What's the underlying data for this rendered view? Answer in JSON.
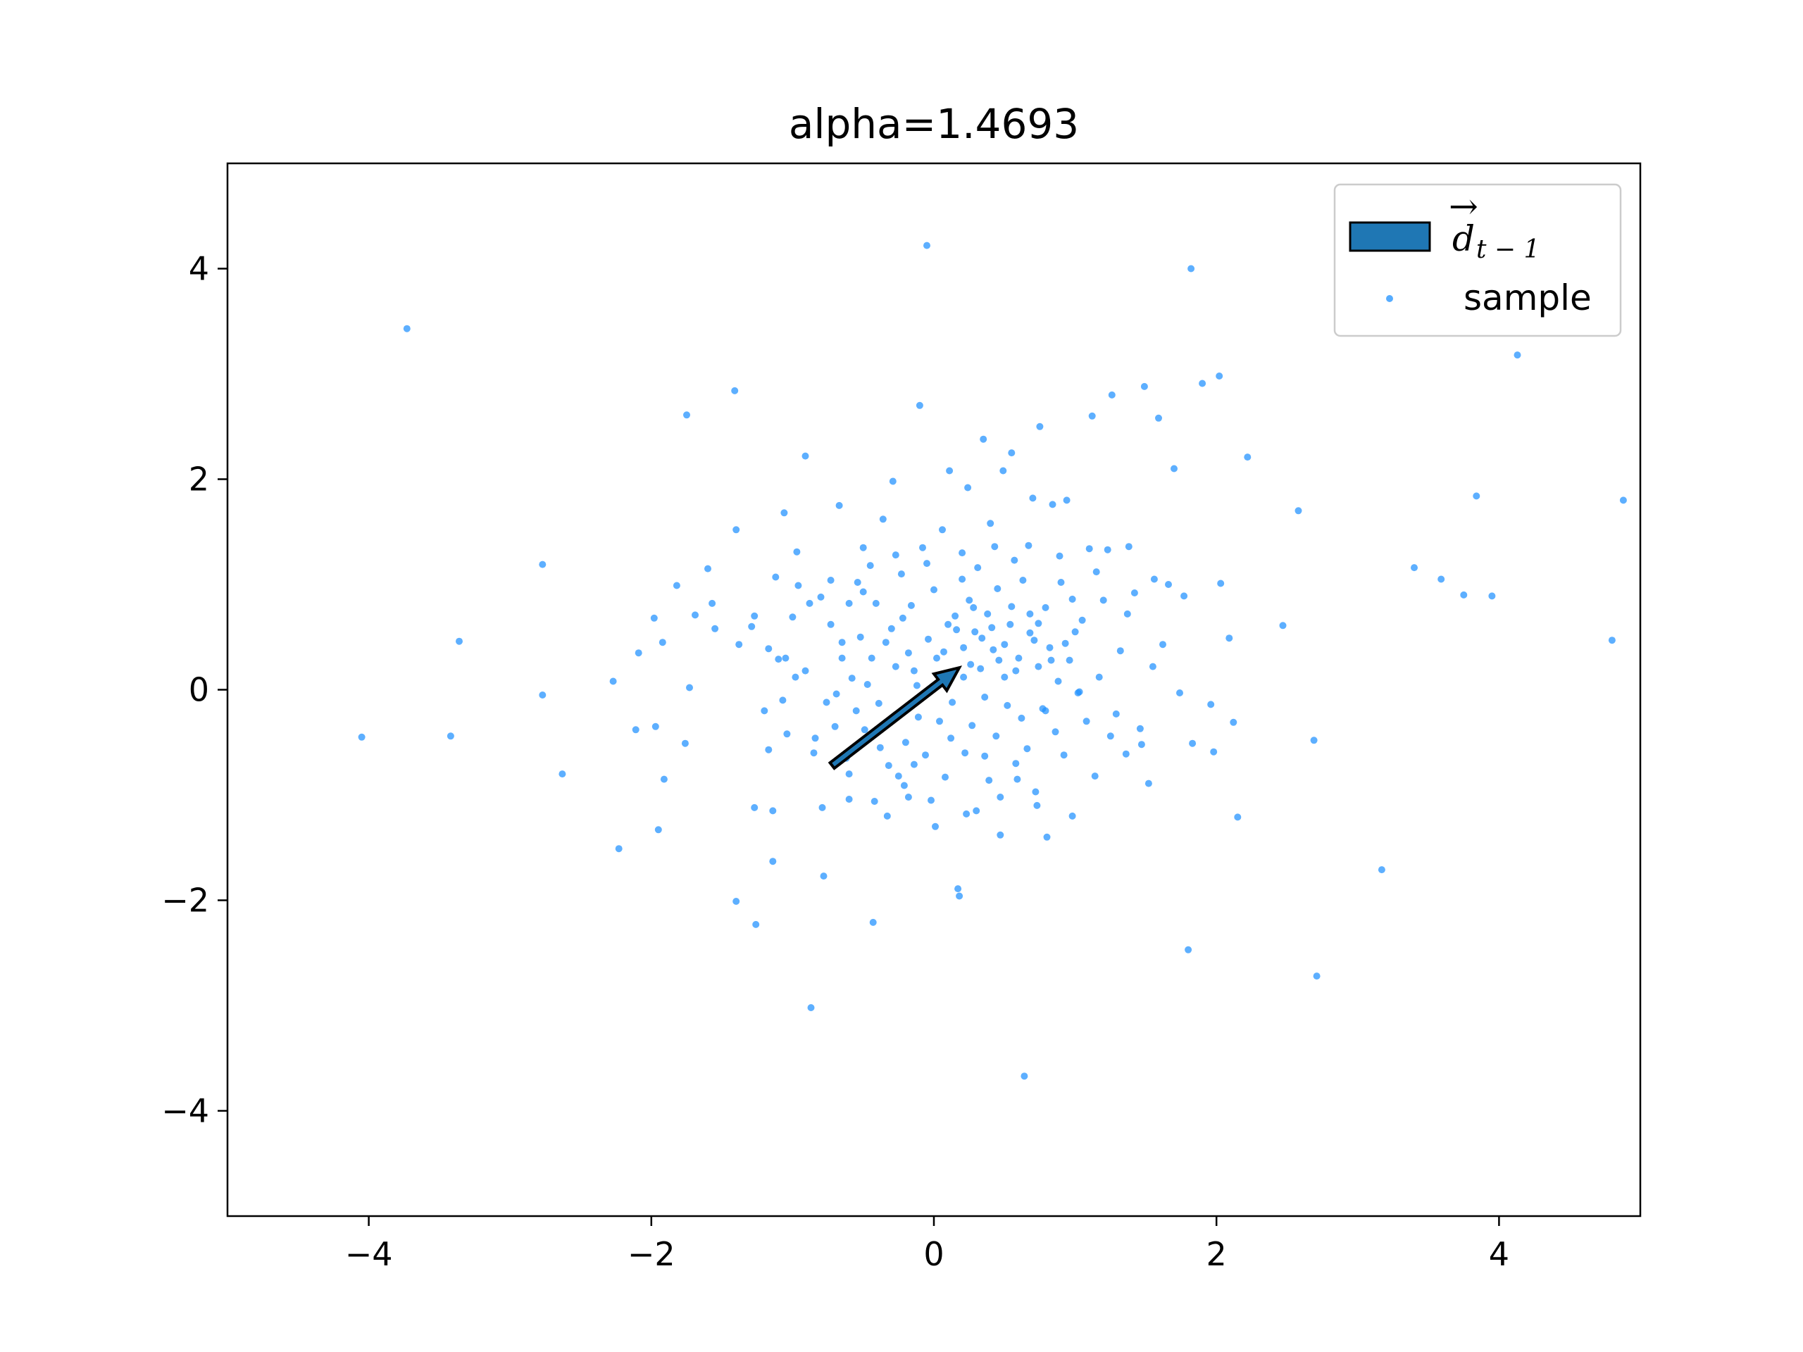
{
  "chart_data": {
    "type": "scatter",
    "title": "alpha=1.4693",
    "xlabel": "",
    "ylabel": "",
    "xlim": [
      -5,
      5
    ],
    "ylim": [
      -5,
      5
    ],
    "xticks": [
      -4,
      -2,
      0,
      2,
      4
    ],
    "yticks": [
      -4,
      -2,
      0,
      2,
      4
    ],
    "xtick_labels": [
      "−4",
      "−2",
      "0",
      "2",
      "4"
    ],
    "ytick_labels": [
      "−4",
      "−2",
      "0",
      "2",
      "4"
    ],
    "grid": false,
    "legend": {
      "placement": "top-right",
      "entries": [
        {
          "label": "d",
          "subscript": "t − 1",
          "arrow_over": "→",
          "kind": "patch",
          "color": "#1f77b4"
        },
        {
          "label": "sample",
          "kind": "point",
          "color": "#1e90ff"
        }
      ]
    },
    "arrow": {
      "x": -0.72,
      "y": -0.72,
      "dx": 0.9,
      "dy": 0.93,
      "face_color": "#1f77b4",
      "edge_color": "#000000"
    },
    "series": [
      {
        "label": "sample",
        "color": "#1e90ff",
        "points": [
          [
            -4.05,
            -0.45
          ],
          [
            -3.73,
            3.43
          ],
          [
            -3.42,
            -0.44
          ],
          [
            -3.36,
            0.46
          ],
          [
            -2.77,
            1.19
          ],
          [
            -2.77,
            -0.05
          ],
          [
            -2.63,
            -0.8
          ],
          [
            -2.27,
            0.08
          ],
          [
            -2.23,
            -1.51
          ],
          [
            -2.09,
            0.35
          ],
          [
            -2.11,
            -0.38
          ],
          [
            -1.97,
            -0.35
          ],
          [
            -1.98,
            0.68
          ],
          [
            -1.95,
            -1.33
          ],
          [
            -1.92,
            0.45
          ],
          [
            -1.91,
            -0.85
          ],
          [
            -1.82,
            0.99
          ],
          [
            -1.75,
            2.61
          ],
          [
            -1.76,
            -0.51
          ],
          [
            -1.73,
            0.02
          ],
          [
            -1.69,
            0.71
          ],
          [
            -1.6,
            1.15
          ],
          [
            -1.57,
            0.82
          ],
          [
            -1.55,
            0.58
          ],
          [
            -1.41,
            2.84
          ],
          [
            -1.4,
            1.52
          ],
          [
            -1.38,
            0.43
          ],
          [
            -1.4,
            -2.01
          ],
          [
            -1.29,
            0.6
          ],
          [
            -1.27,
            -1.12
          ],
          [
            -1.26,
            -2.23
          ],
          [
            -1.2,
            -0.2
          ],
          [
            -1.17,
            -0.57
          ],
          [
            -1.14,
            -1.63
          ],
          [
            -1.14,
            -1.15
          ],
          [
            -1.12,
            1.07
          ],
          [
            -1.1,
            0.29
          ],
          [
            -1.07,
            -0.1
          ],
          [
            -1.06,
            1.68
          ],
          [
            -1.05,
            0.3
          ],
          [
            -1.04,
            -0.42
          ],
          [
            -0.98,
            0.12
          ],
          [
            -0.96,
            0.99
          ],
          [
            -0.91,
            2.22
          ],
          [
            -0.88,
            0.82
          ],
          [
            -0.87,
            -3.02
          ],
          [
            -0.84,
            -0.46
          ],
          [
            -0.8,
            0.88
          ],
          [
            -0.79,
            -1.12
          ],
          [
            -0.78,
            -1.77
          ],
          [
            -0.76,
            -0.12
          ],
          [
            -0.73,
            0.62
          ],
          [
            -0.7,
            -0.35
          ],
          [
            -0.67,
            1.75
          ],
          [
            -0.65,
            0.3
          ],
          [
            -0.62,
            -0.65
          ],
          [
            -0.6,
            0.82
          ],
          [
            -0.58,
            0.11
          ],
          [
            -0.55,
            -0.2
          ],
          [
            -0.52,
            0.5
          ],
          [
            -0.5,
            1.35
          ],
          [
            -0.49,
            -0.38
          ],
          [
            -0.45,
            1.18
          ],
          [
            -0.43,
            -2.21
          ],
          [
            -0.41,
            0.82
          ],
          [
            -0.39,
            -0.13
          ],
          [
            -0.36,
            1.62
          ],
          [
            -0.34,
            0.45
          ],
          [
            -0.33,
            -1.2
          ],
          [
            -0.32,
            -0.72
          ],
          [
            -0.29,
            1.98
          ],
          [
            -0.27,
            0.22
          ],
          [
            -0.25,
            -0.82
          ],
          [
            -0.23,
            1.1
          ],
          [
            -0.22,
            0.68
          ],
          [
            -0.2,
            -0.5
          ],
          [
            -0.18,
            -1.02
          ],
          [
            -0.16,
            0.8
          ],
          [
            -0.14,
            0.18
          ],
          [
            -0.11,
            -0.26
          ],
          [
            -0.1,
            2.7
          ],
          [
            -0.08,
            1.35
          ],
          [
            -0.06,
            -0.62
          ],
          [
            -0.05,
            4.22
          ],
          [
            -0.04,
            0.48
          ],
          [
            -0.02,
            -1.05
          ],
          [
            0.0,
            0.95
          ],
          [
            0.02,
            0.3
          ],
          [
            0.04,
            -0.3
          ],
          [
            0.06,
            1.52
          ],
          [
            0.08,
            -0.83
          ],
          [
            0.1,
            0.62
          ],
          [
            0.11,
            2.08
          ],
          [
            0.13,
            -0.12
          ],
          [
            0.15,
            0.7
          ],
          [
            0.17,
            -1.89
          ],
          [
            0.18,
            -1.96
          ],
          [
            0.2,
            1.3
          ],
          [
            0.21,
            0.4
          ],
          [
            0.22,
            -0.6
          ],
          [
            0.24,
            1.92
          ],
          [
            0.25,
            0.85
          ],
          [
            0.27,
            -0.34
          ],
          [
            0.29,
            0.55
          ],
          [
            0.3,
            -1.15
          ],
          [
            0.31,
            1.16
          ],
          [
            0.33,
            0.2
          ],
          [
            0.35,
            2.38
          ],
          [
            0.36,
            -0.07
          ],
          [
            0.38,
            0.72
          ],
          [
            0.39,
            -0.86
          ],
          [
            0.4,
            1.58
          ],
          [
            0.42,
            0.38
          ],
          [
            0.44,
            -0.44
          ],
          [
            0.45,
            0.96
          ],
          [
            0.47,
            -1.38
          ],
          [
            0.49,
            2.08
          ],
          [
            0.5,
            0.12
          ],
          [
            0.52,
            -0.15
          ],
          [
            0.54,
            0.62
          ],
          [
            0.55,
            2.25
          ],
          [
            0.57,
            1.23
          ],
          [
            0.58,
            -0.7
          ],
          [
            0.6,
            0.3
          ],
          [
            0.62,
            -0.27
          ],
          [
            0.63,
            1.04
          ],
          [
            0.64,
            -3.67
          ],
          [
            0.66,
            -0.56
          ],
          [
            0.68,
            0.54
          ],
          [
            0.7,
            1.82
          ],
          [
            0.72,
            -0.97
          ],
          [
            0.74,
            0.22
          ],
          [
            0.75,
            2.5
          ],
          [
            0.77,
            -0.18
          ],
          [
            0.79,
            0.78
          ],
          [
            0.8,
            -1.4
          ],
          [
            0.82,
            0.4
          ],
          [
            0.84,
            1.76
          ],
          [
            0.86,
            -0.4
          ],
          [
            0.88,
            0.08
          ],
          [
            0.9,
            1.02
          ],
          [
            0.92,
            -0.62
          ],
          [
            0.94,
            1.8
          ],
          [
            0.96,
            0.28
          ],
          [
            0.98,
            -1.2
          ],
          [
            1.0,
            0.55
          ],
          [
            1.02,
            -0.03
          ],
          [
            1.05,
            0.66
          ],
          [
            1.08,
            -0.3
          ],
          [
            1.1,
            1.34
          ],
          [
            1.12,
            2.6
          ],
          [
            1.14,
            -0.82
          ],
          [
            1.17,
            0.12
          ],
          [
            1.2,
            0.85
          ],
          [
            1.23,
            1.33
          ],
          [
            1.26,
            2.8
          ],
          [
            1.29,
            -0.23
          ],
          [
            1.32,
            0.37
          ],
          [
            1.36,
            -0.61
          ],
          [
            1.38,
            1.36
          ],
          [
            1.42,
            0.92
          ],
          [
            1.46,
            -0.37
          ],
          [
            1.49,
            2.88
          ],
          [
            1.52,
            -0.89
          ],
          [
            1.56,
            1.05
          ],
          [
            1.59,
            2.58
          ],
          [
            1.62,
            0.43
          ],
          [
            1.66,
            1.0
          ],
          [
            1.7,
            2.1
          ],
          [
            1.74,
            -0.03
          ],
          [
            1.77,
            0.89
          ],
          [
            1.8,
            -2.47
          ],
          [
            1.82,
            4.0
          ],
          [
            1.83,
            -0.51
          ],
          [
            1.9,
            2.91
          ],
          [
            1.96,
            -0.14
          ],
          [
            1.98,
            -0.59
          ],
          [
            2.02,
            2.98
          ],
          [
            2.03,
            1.01
          ],
          [
            2.09,
            0.49
          ],
          [
            2.12,
            -0.31
          ],
          [
            2.15,
            -1.21
          ],
          [
            2.22,
            2.21
          ],
          [
            2.47,
            0.61
          ],
          [
            2.58,
            1.7
          ],
          [
            2.69,
            -0.48
          ],
          [
            2.71,
            -2.72
          ],
          [
            3.17,
            -1.71
          ],
          [
            3.4,
            1.16
          ],
          [
            3.59,
            1.05
          ],
          [
            3.75,
            0.9
          ],
          [
            3.84,
            1.84
          ],
          [
            3.95,
            0.89
          ],
          [
            4.13,
            3.18
          ],
          [
            4.8,
            0.47
          ],
          [
            4.88,
            1.8
          ],
          [
            -0.65,
            0.45
          ],
          [
            -0.47,
            0.05
          ],
          [
            -0.3,
            0.58
          ],
          [
            -0.12,
            0.04
          ],
          [
            0.07,
            0.36
          ],
          [
            0.21,
            0.12
          ],
          [
            0.34,
            0.49
          ],
          [
            0.46,
            0.28
          ],
          [
            0.58,
            0.18
          ],
          [
            0.71,
            0.47
          ],
          [
            0.83,
            0.28
          ],
          [
            0.93,
            0.44
          ],
          [
            -0.85,
            -0.6
          ],
          [
            -0.6,
            -0.8
          ],
          [
            -0.38,
            -0.55
          ],
          [
            -0.14,
            -0.71
          ],
          [
            0.12,
            -0.46
          ],
          [
            0.36,
            -0.63
          ],
          [
            0.59,
            -0.85
          ],
          [
            0.79,
            -0.2
          ],
          [
            -0.73,
            1.04
          ],
          [
            -0.5,
            0.93
          ],
          [
            -0.27,
            1.28
          ],
          [
            -0.05,
            1.2
          ],
          [
            0.2,
            1.05
          ],
          [
            0.43,
            1.36
          ],
          [
            0.67,
            1.37
          ],
          [
            0.89,
            1.27
          ],
          [
            1.15,
            1.12
          ],
          [
            1.37,
            0.72
          ],
          [
            1.55,
            0.22
          ],
          [
            1.47,
            -0.52
          ],
          [
            1.25,
            -0.44
          ],
          [
            1.03,
            -0.02
          ],
          [
            -1.0,
            0.69
          ],
          [
            -0.91,
            0.18
          ],
          [
            -0.69,
            -0.04
          ],
          [
            -0.44,
            0.3
          ],
          [
            -0.18,
            0.35
          ],
          [
            0.03,
            0.05
          ],
          [
            0.26,
            0.24
          ],
          [
            0.5,
            0.43
          ],
          [
            0.74,
            0.63
          ],
          [
            0.98,
            0.86
          ],
          [
            0.16,
            0.57
          ],
          [
            0.28,
            0.78
          ],
          [
            0.41,
            0.59
          ],
          [
            0.55,
            0.79
          ],
          [
            0.68,
            0.72
          ],
          [
            0.47,
            -1.02
          ],
          [
            0.23,
            -1.18
          ],
          [
            0.01,
            -1.3
          ],
          [
            -0.21,
            -0.91
          ],
          [
            -0.42,
            -1.06
          ],
          [
            -0.6,
            -1.04
          ],
          [
            -1.17,
            0.39
          ],
          [
            -1.27,
            0.7
          ],
          [
            -0.97,
            1.31
          ],
          [
            -0.54,
            1.02
          ],
          [
            0.73,
            -1.1
          ]
        ]
      }
    ]
  }
}
